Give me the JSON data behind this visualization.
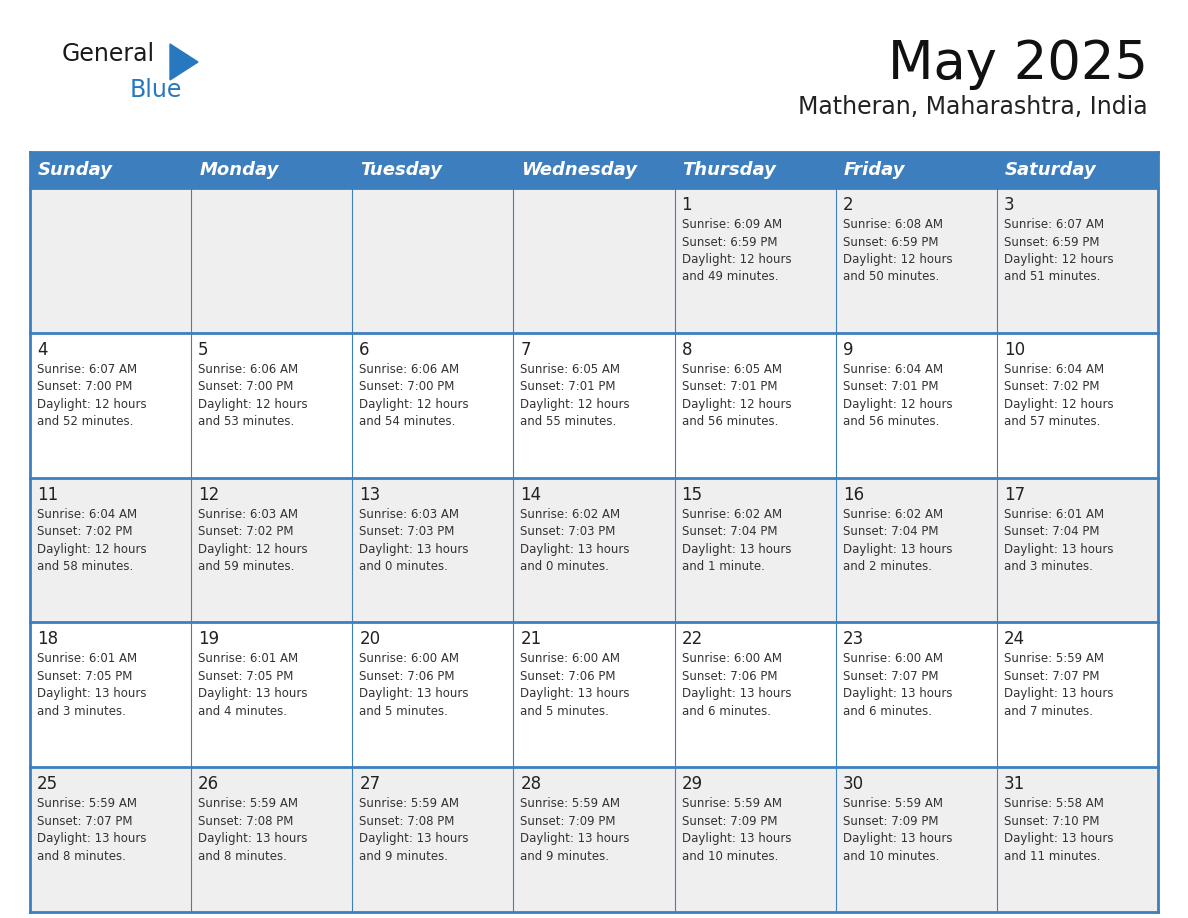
{
  "title": "May 2025",
  "subtitle": "Matheran, Maharashtra, India",
  "header_bg": "#3d7ebf",
  "header_text_color": "#ffffff",
  "cell_bg_even": "#efefef",
  "cell_bg_odd": "#ffffff",
  "grid_color": "#3d7ebf",
  "day_names": [
    "Sunday",
    "Monday",
    "Tuesday",
    "Wednesday",
    "Thursday",
    "Friday",
    "Saturday"
  ],
  "weeks": [
    [
      "",
      "",
      "",
      "",
      "1",
      "2",
      "3"
    ],
    [
      "4",
      "5",
      "6",
      "7",
      "8",
      "9",
      "10"
    ],
    [
      "11",
      "12",
      "13",
      "14",
      "15",
      "16",
      "17"
    ],
    [
      "18",
      "19",
      "20",
      "21",
      "22",
      "23",
      "24"
    ],
    [
      "25",
      "26",
      "27",
      "28",
      "29",
      "30",
      "31"
    ]
  ],
  "cell_data": {
    "1": [
      "Sunrise: 6:09 AM",
      "Sunset: 6:59 PM",
      "Daylight: 12 hours",
      "and 49 minutes."
    ],
    "2": [
      "Sunrise: 6:08 AM",
      "Sunset: 6:59 PM",
      "Daylight: 12 hours",
      "and 50 minutes."
    ],
    "3": [
      "Sunrise: 6:07 AM",
      "Sunset: 6:59 PM",
      "Daylight: 12 hours",
      "and 51 minutes."
    ],
    "4": [
      "Sunrise: 6:07 AM",
      "Sunset: 7:00 PM",
      "Daylight: 12 hours",
      "and 52 minutes."
    ],
    "5": [
      "Sunrise: 6:06 AM",
      "Sunset: 7:00 PM",
      "Daylight: 12 hours",
      "and 53 minutes."
    ],
    "6": [
      "Sunrise: 6:06 AM",
      "Sunset: 7:00 PM",
      "Daylight: 12 hours",
      "and 54 minutes."
    ],
    "7": [
      "Sunrise: 6:05 AM",
      "Sunset: 7:01 PM",
      "Daylight: 12 hours",
      "and 55 minutes."
    ],
    "8": [
      "Sunrise: 6:05 AM",
      "Sunset: 7:01 PM",
      "Daylight: 12 hours",
      "and 56 minutes."
    ],
    "9": [
      "Sunrise: 6:04 AM",
      "Sunset: 7:01 PM",
      "Daylight: 12 hours",
      "and 56 minutes."
    ],
    "10": [
      "Sunrise: 6:04 AM",
      "Sunset: 7:02 PM",
      "Daylight: 12 hours",
      "and 57 minutes."
    ],
    "11": [
      "Sunrise: 6:04 AM",
      "Sunset: 7:02 PM",
      "Daylight: 12 hours",
      "and 58 minutes."
    ],
    "12": [
      "Sunrise: 6:03 AM",
      "Sunset: 7:02 PM",
      "Daylight: 12 hours",
      "and 59 minutes."
    ],
    "13": [
      "Sunrise: 6:03 AM",
      "Sunset: 7:03 PM",
      "Daylight: 13 hours",
      "and 0 minutes."
    ],
    "14": [
      "Sunrise: 6:02 AM",
      "Sunset: 7:03 PM",
      "Daylight: 13 hours",
      "and 0 minutes."
    ],
    "15": [
      "Sunrise: 6:02 AM",
      "Sunset: 7:04 PM",
      "Daylight: 13 hours",
      "and 1 minute."
    ],
    "16": [
      "Sunrise: 6:02 AM",
      "Sunset: 7:04 PM",
      "Daylight: 13 hours",
      "and 2 minutes."
    ],
    "17": [
      "Sunrise: 6:01 AM",
      "Sunset: 7:04 PM",
      "Daylight: 13 hours",
      "and 3 minutes."
    ],
    "18": [
      "Sunrise: 6:01 AM",
      "Sunset: 7:05 PM",
      "Daylight: 13 hours",
      "and 3 minutes."
    ],
    "19": [
      "Sunrise: 6:01 AM",
      "Sunset: 7:05 PM",
      "Daylight: 13 hours",
      "and 4 minutes."
    ],
    "20": [
      "Sunrise: 6:00 AM",
      "Sunset: 7:06 PM",
      "Daylight: 13 hours",
      "and 5 minutes."
    ],
    "21": [
      "Sunrise: 6:00 AM",
      "Sunset: 7:06 PM",
      "Daylight: 13 hours",
      "and 5 minutes."
    ],
    "22": [
      "Sunrise: 6:00 AM",
      "Sunset: 7:06 PM",
      "Daylight: 13 hours",
      "and 6 minutes."
    ],
    "23": [
      "Sunrise: 6:00 AM",
      "Sunset: 7:07 PM",
      "Daylight: 13 hours",
      "and 6 minutes."
    ],
    "24": [
      "Sunrise: 5:59 AM",
      "Sunset: 7:07 PM",
      "Daylight: 13 hours",
      "and 7 minutes."
    ],
    "25": [
      "Sunrise: 5:59 AM",
      "Sunset: 7:07 PM",
      "Daylight: 13 hours",
      "and 8 minutes."
    ],
    "26": [
      "Sunrise: 5:59 AM",
      "Sunset: 7:08 PM",
      "Daylight: 13 hours",
      "and 8 minutes."
    ],
    "27": [
      "Sunrise: 5:59 AM",
      "Sunset: 7:08 PM",
      "Daylight: 13 hours",
      "and 9 minutes."
    ],
    "28": [
      "Sunrise: 5:59 AM",
      "Sunset: 7:09 PM",
      "Daylight: 13 hours",
      "and 9 minutes."
    ],
    "29": [
      "Sunrise: 5:59 AM",
      "Sunset: 7:09 PM",
      "Daylight: 13 hours",
      "and 10 minutes."
    ],
    "30": [
      "Sunrise: 5:59 AM",
      "Sunset: 7:09 PM",
      "Daylight: 13 hours",
      "and 10 minutes."
    ],
    "31": [
      "Sunrise: 5:58 AM",
      "Sunset: 7:10 PM",
      "Daylight: 13 hours",
      "and 11 minutes."
    ]
  },
  "logo_text1": "General",
  "logo_text2": "Blue",
  "logo_text1_color": "#1a1a1a",
  "logo_text2_color": "#2878c0",
  "logo_triangle_color": "#2878c0",
  "title_fontsize": 38,
  "subtitle_fontsize": 17,
  "header_fontsize": 13,
  "day_num_fontsize": 12,
  "cell_text_fontsize": 8.5
}
